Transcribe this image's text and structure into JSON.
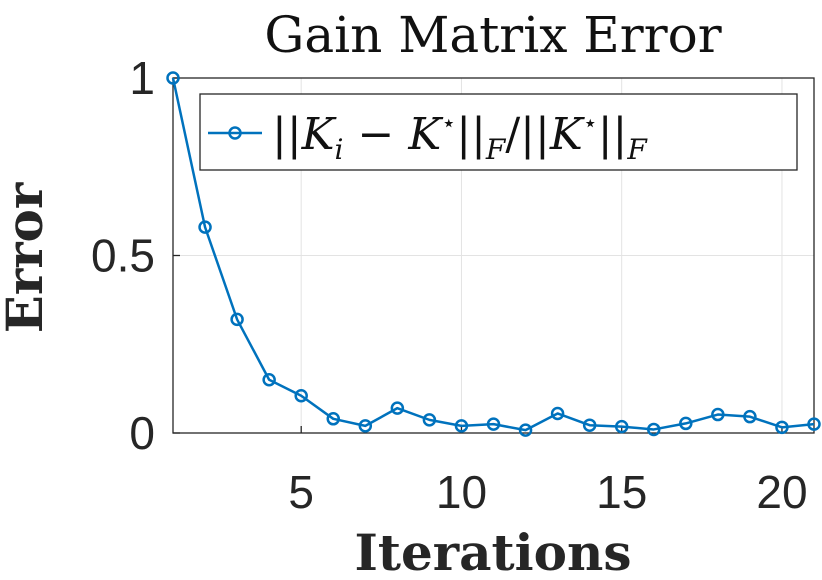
{
  "chart_data": {
    "type": "line",
    "title": "Gain Matrix Error",
    "xlabel": "Iterations",
    "ylabel": "Error",
    "xlim": [
      1,
      21
    ],
    "ylim": [
      0,
      1
    ],
    "xticks": [
      5,
      10,
      15,
      20
    ],
    "xtick_labels": [
      "5",
      "10",
      "15",
      "20"
    ],
    "yticks": [
      0,
      0.5,
      1
    ],
    "ytick_labels": [
      "0",
      "0.5",
      "1"
    ],
    "grid": true,
    "legend_position": "top-right",
    "series": [
      {
        "name": "||K_i − K*||_F / ||K*||_F",
        "color": "#0072BD",
        "marker": "circle",
        "x": [
          1,
          2,
          3,
          4,
          5,
          6,
          7,
          8,
          9,
          10,
          11,
          12,
          13,
          14,
          15,
          16,
          17,
          18,
          19,
          20,
          21
        ],
        "y": [
          1.0,
          0.58,
          0.32,
          0.15,
          0.105,
          0.04,
          0.02,
          0.07,
          0.037,
          0.02,
          0.025,
          0.008,
          0.055,
          0.022,
          0.018,
          0.01,
          0.027,
          0.052,
          0.046,
          0.016,
          0.025
        ]
      }
    ]
  }
}
